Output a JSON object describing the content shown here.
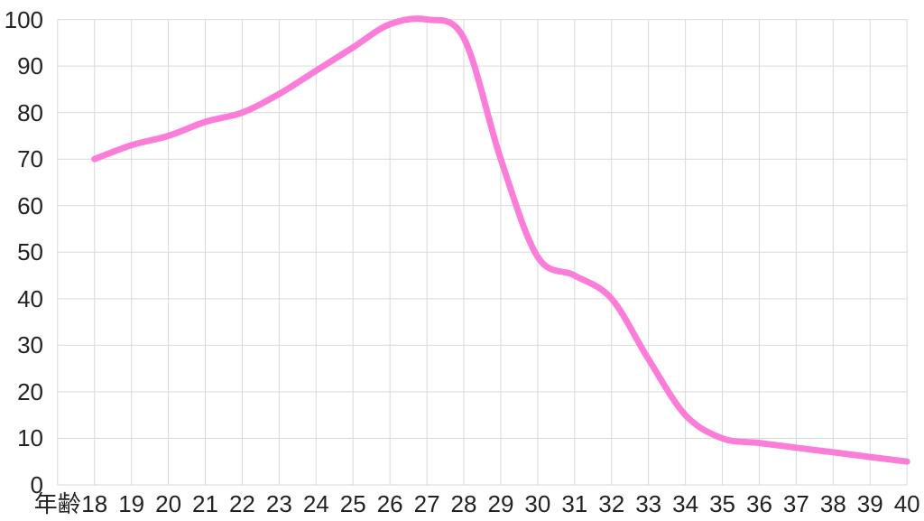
{
  "chart_data": {
    "type": "line",
    "title": "",
    "x_axis_title": "年齢",
    "categories": [
      "18",
      "19",
      "20",
      "21",
      "22",
      "23",
      "24",
      "25",
      "26",
      "27",
      "28",
      "29",
      "30",
      "31",
      "32",
      "33",
      "34",
      "35",
      "36",
      "37",
      "38",
      "39",
      "40"
    ],
    "series": [
      {
        "name": "series-1",
        "color": "#FB7DD8",
        "values": [
          70,
          73,
          75,
          78,
          80,
          84,
          89,
          94,
          99,
          100,
          96,
          70,
          49,
          45,
          40,
          27,
          15,
          10,
          9,
          8,
          7,
          6,
          5
        ]
      }
    ],
    "y_ticks": [
      0,
      10,
      20,
      30,
      40,
      50,
      60,
      70,
      80,
      90,
      100
    ],
    "y_tick_labels": [
      "0",
      "10",
      "20",
      "30",
      "40",
      "50",
      "60",
      "70",
      "80",
      "90",
      "100"
    ],
    "ylim": [
      0,
      100
    ],
    "grid": true,
    "legend_position": "none"
  },
  "style": {
    "background_color": "#ffffff",
    "grid_color": "#d9d9d9",
    "axis_text_color": "#222222",
    "line_color": "#FB7DD8",
    "line_width": 7
  }
}
